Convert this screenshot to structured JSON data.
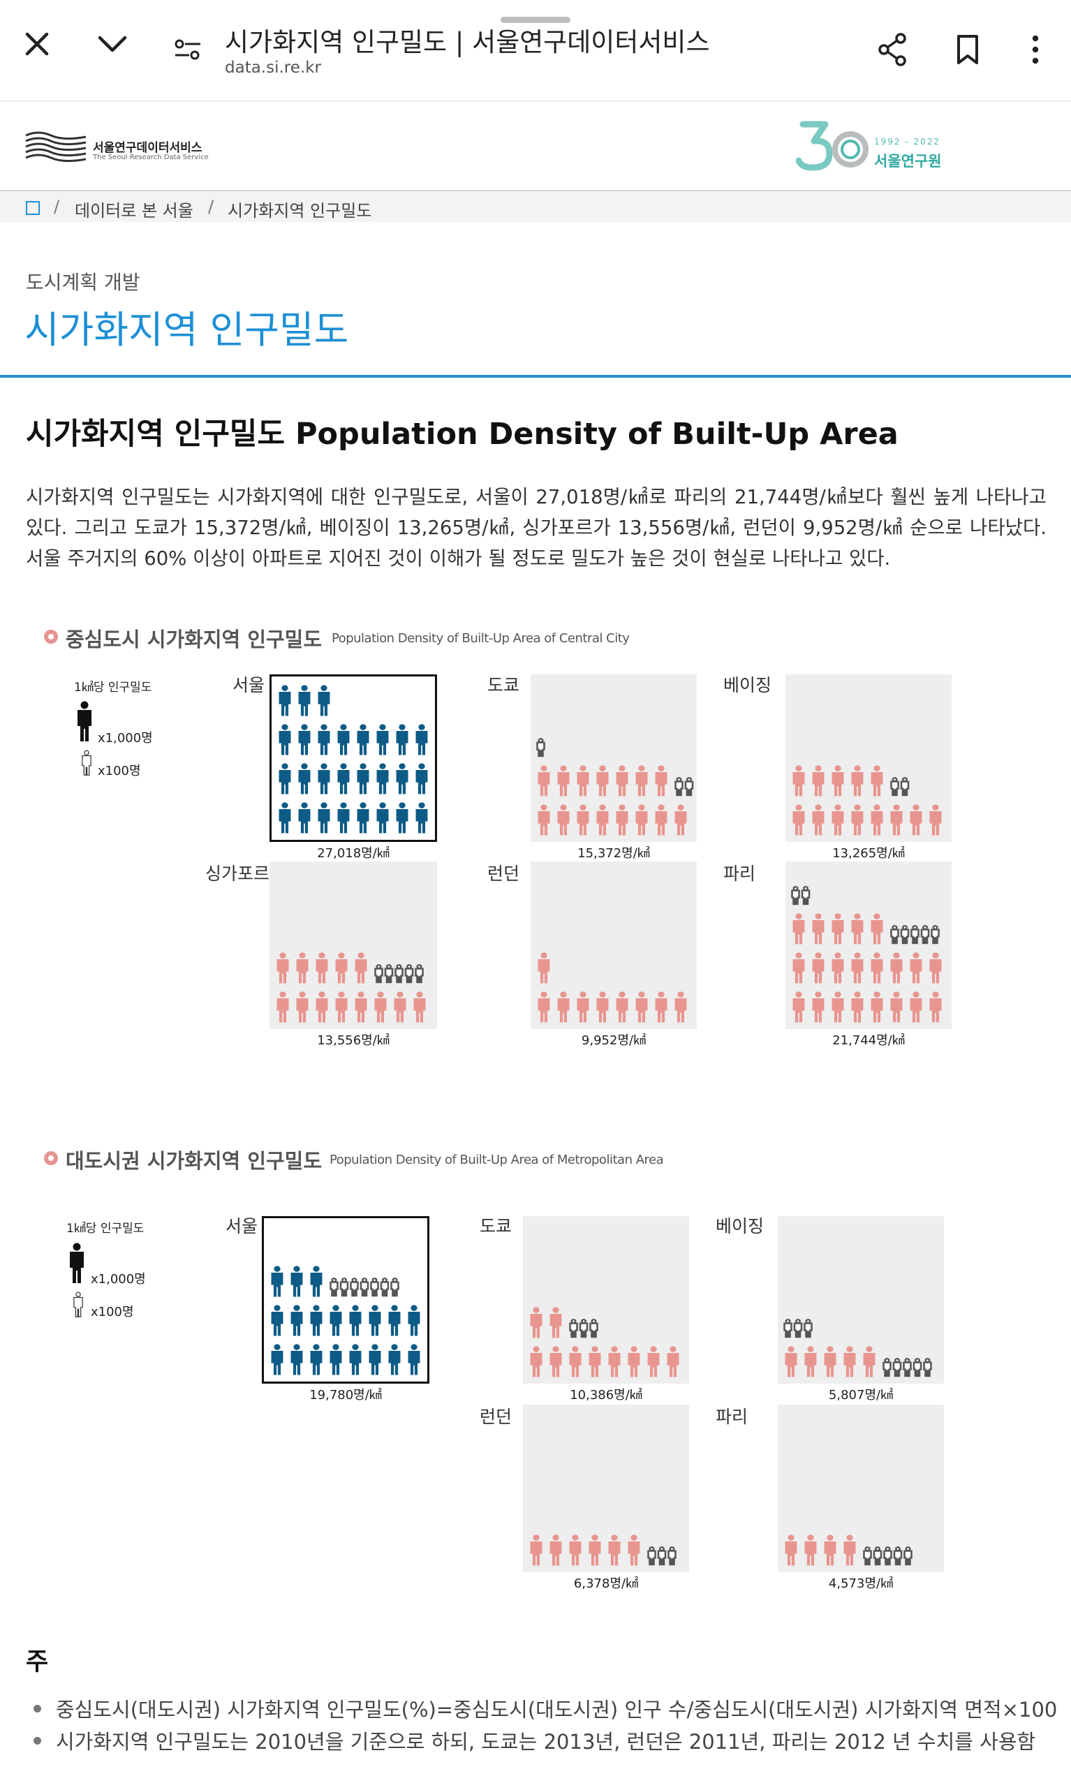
{
  "browser": {
    "title": "시가화지역 인구밀도 | 서울연구데이터서비스",
    "url": "data.si.re.kr",
    "icons": [
      "close-icon",
      "chevron-down-icon",
      "page-settings-icon",
      "share-icon",
      "bookmark-icon",
      "more-vert-icon"
    ]
  },
  "site": {
    "logo_kr": "서울연구데이터서비스",
    "logo_en": "The Seoul Research Data Service",
    "anniv_years": "1992 - 2022",
    "anniv_name": "서울연구원"
  },
  "breadcrumb": {
    "items": [
      "데이터로 본 서울",
      "시가화지역 인구밀도"
    ],
    "sep": "/"
  },
  "header": {
    "category": "도시계획 개발",
    "title": "시가화지역 인구밀도"
  },
  "section": {
    "title": "시가화지역 인구밀도 Population Density of Built-Up Area",
    "description": "시가화지역 인구밀도는 시가화지역에 대한 인구밀도로, 서울이 27,018명/㎢로 파리의 21,744명/㎢보다 훨씬 높게 나타나고 있다. 그리고 도쿄가 15,372명/㎢, 베이징이 13,265명/㎢, 싱가포르가 13,556명/㎢, 런던이 9,952명/㎢ 순으로 나타났다. 서울 주거지의 60% 이상이 아파트로 지어진 것이 이해가 될 정도로 밀도가 높은 것이 현실로 나타나고 있다."
  },
  "colors": {
    "seoul": "#0d5b86",
    "other": "#e8958f",
    "hundred": "#ffffff",
    "accent": "#1c8fd5"
  },
  "legend": {
    "title": "1㎢당 인구밀도",
    "thousand": "x1,000명",
    "hundred": "x100명"
  },
  "chart_data": [
    {
      "type": "pictogram",
      "title": "중심도시 시가화지역 인구밀도",
      "subtitle": "Population Density of Built-Up Area of Central City",
      "unit": "명/㎢",
      "cities": [
        {
          "name": "서울",
          "value": 27018,
          "label": "27,018명/㎢",
          "thousands": 27,
          "hundreds": 0,
          "highlight": true
        },
        {
          "name": "도쿄",
          "value": 15372,
          "label": "15,372명/㎢",
          "thousands": 15,
          "hundreds": 3,
          "highlight": false
        },
        {
          "name": "베이징",
          "value": 13265,
          "label": "13,265명/㎢",
          "thousands": 13,
          "hundreds": 2,
          "highlight": false
        },
        {
          "name": "싱가포르",
          "value": 13556,
          "label": "13,556명/㎢",
          "thousands": 13,
          "hundreds": 5,
          "highlight": false
        },
        {
          "name": "런던",
          "value": 9952,
          "label": "9,952명/㎢",
          "thousands": 9,
          "hundreds": 0,
          "highlight": false
        },
        {
          "name": "파리",
          "value": 21744,
          "label": "21,744명/㎢",
          "thousands": 21,
          "hundreds": 7,
          "highlight": false
        }
      ]
    },
    {
      "type": "pictogram",
      "title": "대도시권 시가화지역 인구밀도",
      "subtitle": "Population Density of Built-Up Area of Metropolitan Area",
      "unit": "명/㎢",
      "cities": [
        {
          "name": "서울",
          "value": 19780,
          "label": "19,780명/㎢",
          "thousands": 19,
          "hundreds": 7,
          "highlight": true
        },
        {
          "name": "도쿄",
          "value": 10386,
          "label": "10,386명/㎢",
          "thousands": 10,
          "hundreds": 3,
          "highlight": false
        },
        {
          "name": "베이징",
          "value": 5807,
          "label": "5,807명/㎢",
          "thousands": 5,
          "hundreds": 8,
          "highlight": false
        },
        {
          "name": "런던",
          "value": 6378,
          "label": "6,378명/㎢",
          "thousands": 6,
          "hundreds": 3,
          "highlight": false
        },
        {
          "name": "파리",
          "value": 4573,
          "label": "4,573명/㎢",
          "thousands": 4,
          "hundreds": 5,
          "highlight": false
        }
      ]
    }
  ],
  "notes": {
    "heading": "주",
    "items": [
      "중심도시(대도시권) 시가화지역 인구밀도(%)=중심도시(대도시권) 인구 수/중심도시(대도시권) 시가화지역 면적×100",
      "시가화지역 인구밀도는 2010년을 기준으로 하되, 도쿄는 2013년, 런던은 2011년, 파리는 2012 년 수치를 사용함"
    ]
  }
}
